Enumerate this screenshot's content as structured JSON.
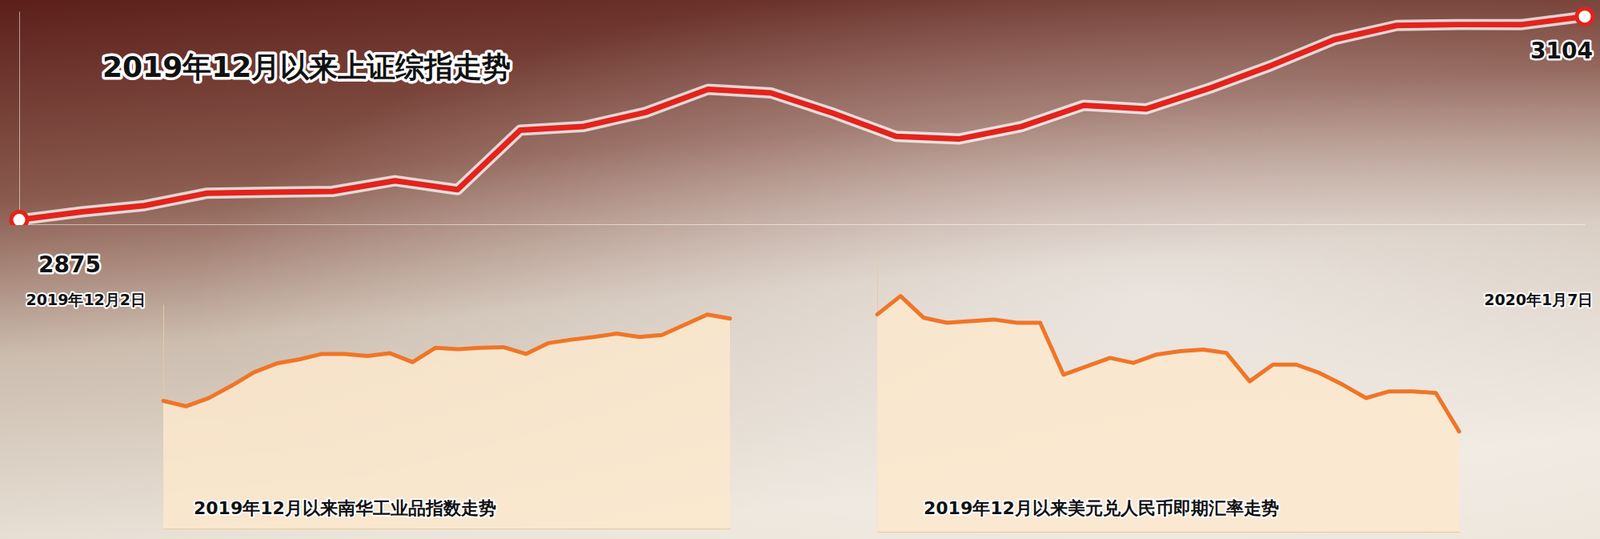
{
  "chart_data": [
    {
      "type": "line",
      "title": "2019年12月以来上证综指走势",
      "categories": [
        "2019年12月2日",
        null,
        null,
        null,
        null,
        null,
        null,
        null,
        null,
        null,
        null,
        null,
        null,
        null,
        null,
        null,
        null,
        null,
        null,
        null,
        null,
        null,
        null,
        null,
        null,
        "2020年1月7日"
      ],
      "values": [
        2875,
        2884,
        2891,
        2905,
        2906,
        2907,
        2919,
        2909,
        2976,
        2980,
        2996,
        3022,
        3018,
        2995,
        2969,
        2966,
        2980,
        3004,
        3000,
        3023,
        3049,
        3078,
        3094,
        3095,
        3095,
        3104
      ],
      "data_labels": true,
      "value_labels": [
        "2875",
        null,
        null,
        null,
        null,
        null,
        null,
        null,
        null,
        null,
        null,
        null,
        null,
        null,
        null,
        null,
        null,
        null,
        null,
        null,
        null,
        null,
        null,
        null,
        null,
        "3104"
      ],
      "color": "#e3231c",
      "marker": "circle",
      "ylim": [
        2870,
        3110
      ],
      "tick_labels": "x"
    },
    {
      "type": "area",
      "title": "2019年12月以来南华工业品指数走势",
      "categories": [
        null,
        null,
        null,
        null,
        null,
        null,
        null,
        null,
        null,
        null,
        null,
        null,
        null,
        null,
        null,
        null,
        null,
        null,
        null,
        null,
        null,
        null,
        null,
        null,
        null,
        null
      ],
      "values": [
        2258,
        2250,
        2262,
        2280,
        2300,
        2313,
        2319,
        2327,
        2327,
        2324,
        2328,
        2315,
        2336,
        2334,
        2336,
        2337,
        2327,
        2343,
        2348,
        2352,
        2357,
        2352,
        2355,
        2370,
        2385,
        2379
      ],
      "color": "#f07526",
      "ylim": [
        2070,
        2400
      ],
      "tick_labels": false
    },
    {
      "type": "area",
      "title": "2019年12月以来美元兑人民币即期汇率走势",
      "categories": [
        null,
        null,
        null,
        null,
        null,
        null,
        null,
        null,
        null,
        null,
        null,
        null,
        null,
        null,
        null,
        null,
        null,
        null,
        null,
        null,
        null,
        null,
        null,
        null,
        null,
        null
      ],
      "values": [
        7.03,
        7.041,
        7.028,
        7.025,
        7.026,
        7.027,
        7.025,
        7.025,
        6.994,
        6.999,
        7.004,
        7.001,
        7.006,
        7.008,
        7.009,
        7.007,
        6.99,
        7.0,
        7.0,
        6.995,
        6.988,
        6.98,
        6.984,
        6.984,
        6.983,
        6.96
      ],
      "color": "#f07526",
      "ylim": [
        6.9,
        7.06
      ],
      "tick_labels": false
    }
  ]
}
